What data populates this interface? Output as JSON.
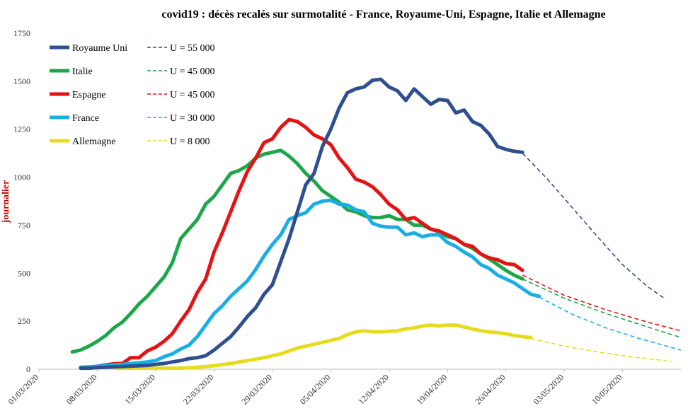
{
  "chart_data": {
    "type": "line",
    "title": "covid19 : décès recalés sur surmotalité - France, Royaume-Uni, Espagne, Italie et Allemagne",
    "ylabel": "journalier",
    "xlabel": "",
    "ylim": [
      0,
      1750
    ],
    "yticks": [
      0,
      250,
      500,
      750,
      1000,
      1250,
      1500,
      1750
    ],
    "xrange": [
      "2020-03-01",
      "2020-05-17"
    ],
    "xtick_labels": [
      "01/03/2020",
      "08/03/2020",
      "15/03/2020",
      "22/03/2020",
      "29/03/2020",
      "05/04/2020",
      "12/04/2020",
      "19/04/2020",
      "26/04/2020",
      "03/05/2020",
      "10/05/2020"
    ],
    "xtick_dates": [
      "2020-03-01",
      "2020-03-08",
      "2020-03-15",
      "2020-03-22",
      "2020-03-29",
      "2020-04-05",
      "2020-04-12",
      "2020-04-19",
      "2020-04-26",
      "2020-05-03",
      "2020-05-10"
    ],
    "grid": false,
    "legend_position": "top-left",
    "series": [
      {
        "name": "Royaume Uni",
        "color": "#2f4f8f",
        "x": [
          "2020-03-06",
          "2020-03-07",
          "2020-03-08",
          "2020-03-09",
          "2020-03-10",
          "2020-03-11",
          "2020-03-12",
          "2020-03-13",
          "2020-03-14",
          "2020-03-15",
          "2020-03-16",
          "2020-03-17",
          "2020-03-18",
          "2020-03-19",
          "2020-03-20",
          "2020-03-21",
          "2020-03-22",
          "2020-03-23",
          "2020-03-24",
          "2020-03-25",
          "2020-03-26",
          "2020-03-27",
          "2020-03-28",
          "2020-03-29",
          "2020-03-30",
          "2020-03-31",
          "2020-04-01",
          "2020-04-02",
          "2020-04-03",
          "2020-04-04",
          "2020-04-05",
          "2020-04-06",
          "2020-04-07",
          "2020-04-08",
          "2020-04-09",
          "2020-04-10",
          "2020-04-11",
          "2020-04-12",
          "2020-04-13",
          "2020-04-14",
          "2020-04-15",
          "2020-04-16",
          "2020-04-17",
          "2020-04-18",
          "2020-04-19",
          "2020-04-20",
          "2020-04-21",
          "2020-04-22",
          "2020-04-23",
          "2020-04-24",
          "2020-04-25",
          "2020-04-26",
          "2020-04-27",
          "2020-04-28"
        ],
        "values": [
          5,
          5,
          8,
          10,
          12,
          14,
          16,
          18,
          20,
          25,
          30,
          38,
          45,
          55,
          60,
          70,
          100,
          135,
          170,
          220,
          275,
          320,
          390,
          440,
          560,
          680,
          820,
          960,
          1020,
          1160,
          1250,
          1360,
          1440,
          1460,
          1470,
          1505,
          1510,
          1470,
          1450,
          1400,
          1460,
          1420,
          1380,
          1405,
          1400,
          1335,
          1350,
          1290,
          1270,
          1225,
          1160,
          1145,
          1135,
          1130
        ]
      },
      {
        "name": "Italie",
        "color": "#1ea64b",
        "x": [
          "2020-03-05",
          "2020-03-06",
          "2020-03-07",
          "2020-03-08",
          "2020-03-09",
          "2020-03-10",
          "2020-03-11",
          "2020-03-12",
          "2020-03-13",
          "2020-03-14",
          "2020-03-15",
          "2020-03-16",
          "2020-03-17",
          "2020-03-18",
          "2020-03-19",
          "2020-03-20",
          "2020-03-21",
          "2020-03-22",
          "2020-03-23",
          "2020-03-24",
          "2020-03-25",
          "2020-03-26",
          "2020-03-27",
          "2020-03-28",
          "2020-03-29",
          "2020-03-30",
          "2020-03-31",
          "2020-04-01",
          "2020-04-02",
          "2020-04-03",
          "2020-04-04",
          "2020-04-05",
          "2020-04-06",
          "2020-04-07",
          "2020-04-08",
          "2020-04-09",
          "2020-04-10",
          "2020-04-11",
          "2020-04-12",
          "2020-04-13",
          "2020-04-14",
          "2020-04-15",
          "2020-04-16",
          "2020-04-17",
          "2020-04-18",
          "2020-04-19",
          "2020-04-20",
          "2020-04-21",
          "2020-04-22",
          "2020-04-23",
          "2020-04-24",
          "2020-04-25",
          "2020-04-26",
          "2020-04-27",
          "2020-04-28"
        ],
        "values": [
          90,
          100,
          120,
          145,
          175,
          215,
          245,
          290,
          340,
          380,
          430,
          480,
          555,
          680,
          730,
          780,
          860,
          900,
          960,
          1020,
          1035,
          1060,
          1100,
          1120,
          1130,
          1140,
          1110,
          1070,
          1020,
          980,
          930,
          900,
          870,
          830,
          820,
          800,
          790,
          790,
          800,
          780,
          780,
          750,
          750,
          730,
          715,
          690,
          680,
          650,
          630,
          600,
          575,
          545,
          515,
          490,
          470
        ]
      },
      {
        "name": "Espagne",
        "color": "#e31414",
        "x": [
          "2020-03-08",
          "2020-03-09",
          "2020-03-10",
          "2020-03-11",
          "2020-03-12",
          "2020-03-13",
          "2020-03-14",
          "2020-03-15",
          "2020-03-16",
          "2020-03-17",
          "2020-03-18",
          "2020-03-19",
          "2020-03-20",
          "2020-03-21",
          "2020-03-22",
          "2020-03-23",
          "2020-03-24",
          "2020-03-25",
          "2020-03-26",
          "2020-03-27",
          "2020-03-28",
          "2020-03-29",
          "2020-03-30",
          "2020-03-31",
          "2020-04-01",
          "2020-04-02",
          "2020-04-03",
          "2020-04-04",
          "2020-04-05",
          "2020-04-06",
          "2020-04-07",
          "2020-04-08",
          "2020-04-09",
          "2020-04-10",
          "2020-04-11",
          "2020-04-12",
          "2020-04-13",
          "2020-04-14",
          "2020-04-15",
          "2020-04-16",
          "2020-04-17",
          "2020-04-18",
          "2020-04-19",
          "2020-04-20",
          "2020-04-21",
          "2020-04-22",
          "2020-04-23",
          "2020-04-24",
          "2020-04-25",
          "2020-04-26",
          "2020-04-27",
          "2020-04-28"
        ],
        "values": [
          15,
          22,
          28,
          30,
          60,
          60,
          95,
          115,
          145,
          185,
          250,
          310,
          400,
          470,
          610,
          710,
          820,
          930,
          1030,
          1100,
          1180,
          1200,
          1260,
          1300,
          1290,
          1260,
          1220,
          1200,
          1170,
          1100,
          1050,
          990,
          975,
          950,
          910,
          860,
          830,
          780,
          790,
          760,
          730,
          720,
          700,
          680,
          650,
          640,
          600,
          580,
          570,
          550,
          545,
          515
        ]
      },
      {
        "name": "France",
        "color": "#1aaee6",
        "x": [
          "2020-03-06",
          "2020-03-07",
          "2020-03-08",
          "2020-03-09",
          "2020-03-10",
          "2020-03-11",
          "2020-03-12",
          "2020-03-13",
          "2020-03-14",
          "2020-03-15",
          "2020-03-16",
          "2020-03-17",
          "2020-03-18",
          "2020-03-19",
          "2020-03-20",
          "2020-03-21",
          "2020-03-22",
          "2020-03-23",
          "2020-03-24",
          "2020-03-25",
          "2020-03-26",
          "2020-03-27",
          "2020-03-28",
          "2020-03-29",
          "2020-03-30",
          "2020-03-31",
          "2020-04-01",
          "2020-04-02",
          "2020-04-03",
          "2020-04-04",
          "2020-04-05",
          "2020-04-06",
          "2020-04-07",
          "2020-04-08",
          "2020-04-09",
          "2020-04-10",
          "2020-04-11",
          "2020-04-12",
          "2020-04-13",
          "2020-04-14",
          "2020-04-15",
          "2020-04-16",
          "2020-04-17",
          "2020-04-18",
          "2020-04-19",
          "2020-04-20",
          "2020-04-21",
          "2020-04-22",
          "2020-04-23",
          "2020-04-24",
          "2020-04-25",
          "2020-04-26",
          "2020-04-27",
          "2020-04-28",
          "2020-04-29",
          "2020-04-30"
        ],
        "values": [
          10,
          12,
          15,
          18,
          22,
          25,
          30,
          33,
          38,
          45,
          65,
          80,
          105,
          125,
          170,
          230,
          290,
          330,
          380,
          420,
          460,
          520,
          590,
          650,
          700,
          780,
          800,
          815,
          860,
          875,
          880,
          860,
          855,
          830,
          820,
          760,
          745,
          740,
          740,
          700,
          710,
          690,
          700,
          700,
          660,
          640,
          610,
          585,
          545,
          525,
          490,
          470,
          450,
          420,
          390,
          380
        ]
      },
      {
        "name": "Allemagne",
        "color": "#e6dc1e",
        "x": [
          "2020-03-10",
          "2020-03-12",
          "2020-03-15",
          "2020-03-18",
          "2020-03-20",
          "2020-03-22",
          "2020-03-24",
          "2020-03-26",
          "2020-03-28",
          "2020-03-30",
          "2020-04-01",
          "2020-04-02",
          "2020-04-04",
          "2020-04-06",
          "2020-04-07",
          "2020-04-08",
          "2020-04-09",
          "2020-04-10",
          "2020-04-11",
          "2020-04-12",
          "2020-04-13",
          "2020-04-14",
          "2020-04-15",
          "2020-04-16",
          "2020-04-17",
          "2020-04-18",
          "2020-04-19",
          "2020-04-20",
          "2020-04-21",
          "2020-04-22",
          "2020-04-23",
          "2020-04-24",
          "2020-04-25",
          "2020-04-26",
          "2020-04-27",
          "2020-04-28",
          "2020-04-29"
        ],
        "values": [
          5,
          5,
          5,
          5,
          10,
          18,
          30,
          45,
          60,
          80,
          110,
          120,
          140,
          160,
          180,
          195,
          200,
          195,
          195,
          198,
          200,
          210,
          215,
          225,
          230,
          225,
          230,
          230,
          220,
          210,
          200,
          195,
          190,
          185,
          175,
          170,
          165
        ]
      },
      {
        "name": "U = 55 000",
        "color": "#2f4f8f",
        "dashed": true,
        "x": [
          "2020-04-28",
          "2020-05-01",
          "2020-05-04",
          "2020-05-07",
          "2020-05-10",
          "2020-05-13",
          "2020-05-15"
        ],
        "values": [
          1125,
          990,
          840,
          690,
          545,
          430,
          370
        ]
      },
      {
        "name": "U = 45 000",
        "color": "#1ea64b",
        "dashed": true,
        "x": [
          "2020-04-28",
          "2020-05-03",
          "2020-05-08",
          "2020-05-13",
          "2020-05-17"
        ],
        "values": [
          470,
          370,
          290,
          220,
          165
        ]
      },
      {
        "name": "U = 45 000",
        "color": "#e31414",
        "dashed": true,
        "x": [
          "2020-04-28",
          "2020-05-03",
          "2020-05-08",
          "2020-05-13",
          "2020-05-17"
        ],
        "values": [
          490,
          385,
          310,
          245,
          200
        ]
      },
      {
        "name": "U = 30 000",
        "color": "#1aaee6",
        "dashed": true,
        "x": [
          "2020-04-30",
          "2020-05-04",
          "2020-05-08",
          "2020-05-12",
          "2020-05-17"
        ],
        "values": [
          375,
          285,
          215,
          160,
          100
        ]
      },
      {
        "name": "U = 8 000",
        "color": "#e6dc1e",
        "dashed": true,
        "x": [
          "2020-04-29",
          "2020-05-03",
          "2020-05-07",
          "2020-05-11",
          "2020-05-16"
        ],
        "values": [
          160,
          120,
          90,
          65,
          40
        ]
      }
    ],
    "legend": [
      {
        "label": "Royaume Uni",
        "color": "#2f4f8f",
        "dashed": false
      },
      {
        "label": "U = 55 000",
        "color": "#2f4f8f",
        "dashed": true
      },
      {
        "label": "Italie",
        "color": "#1ea64b",
        "dashed": false
      },
      {
        "label": "U = 45 000",
        "color": "#1ea64b",
        "dashed": true
      },
      {
        "label": "Espagne",
        "color": "#e31414",
        "dashed": false
      },
      {
        "label": "U = 45 000",
        "color": "#e31414",
        "dashed": true
      },
      {
        "label": "France",
        "color": "#1aaee6",
        "dashed": false
      },
      {
        "label": "U = 30 000",
        "color": "#1aaee6",
        "dashed": true
      },
      {
        "label": "Allemagne",
        "color": "#e6dc1e",
        "dashed": false
      },
      {
        "label": "U = 8 000",
        "color": "#e6dc1e",
        "dashed": true
      }
    ]
  }
}
